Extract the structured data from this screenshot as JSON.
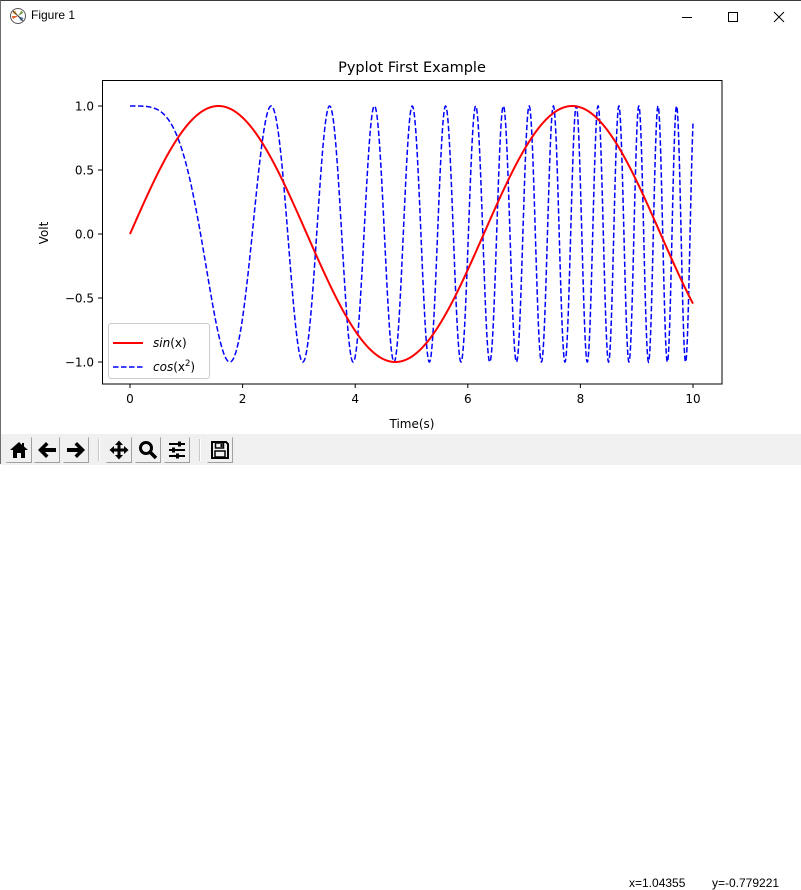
{
  "window": {
    "title": "Figure 1",
    "controls": {
      "minimize": "minimize",
      "maximize": "maximize",
      "close": "close"
    }
  },
  "toolbar": {
    "buttons": [
      {
        "name": "home",
        "icon": "home-icon",
        "tooltip": "Reset original view"
      },
      {
        "name": "back",
        "icon": "arrow-left-icon",
        "tooltip": "Back to previous view"
      },
      {
        "name": "forward",
        "icon": "arrow-right-icon",
        "tooltip": "Forward to next view"
      },
      {
        "name": "pan",
        "icon": "move-icon",
        "tooltip": "Pan axes"
      },
      {
        "name": "zoom",
        "icon": "magnifier-icon",
        "tooltip": "Zoom to rectangle"
      },
      {
        "name": "configure",
        "icon": "sliders-icon",
        "tooltip": "Configure subplots"
      },
      {
        "name": "save",
        "icon": "floppy-disk-icon",
        "tooltip": "Save the figure"
      }
    ],
    "coords": {
      "x": "x=1.04355",
      "y": "y=-0.779221"
    }
  },
  "chart_data": {
    "type": "line",
    "title": "Pyplot First Example",
    "xlabel": "Time(s)",
    "ylabel": "Volt",
    "xlim": [
      -0.5,
      10.5
    ],
    "ylim": [
      -1.1,
      1.2
    ],
    "xticks": [
      0,
      2,
      4,
      6,
      8,
      10
    ],
    "xtick_labels": [
      "0",
      "2",
      "4",
      "6",
      "8",
      "10"
    ],
    "yticks": [
      1.0,
      0.5,
      0.0,
      -0.5,
      -1.0
    ],
    "ytick_labels": [
      "1.0",
      "0.5",
      "0.0",
      "−0.5",
      "−1.0"
    ],
    "grid": false,
    "legend_position": "lower left",
    "x_domain": {
      "start": 0,
      "end": 10,
      "samples": 2000
    },
    "series": [
      {
        "name": "sin(x)",
        "label_main": "sin",
        "label_arg": "(x)",
        "function": "sin(x)",
        "color": "#ff0000",
        "linestyle": "solid",
        "linewidth": 2,
        "x": [
          0,
          1.5708,
          3.1416,
          4.7124,
          6.2832,
          7.854,
          9.4248,
          10
        ],
        "values": [
          0,
          1,
          0,
          -1,
          0,
          1,
          0,
          -0.544
        ]
      },
      {
        "name": "cos(x^2)",
        "label_main": "cos",
        "label_arg_pre": "(x",
        "label_sup": "2",
        "label_arg_post": ")",
        "function": "cos(x*x)",
        "color": "#0000ff",
        "linestyle": "dashed",
        "linewidth": 1.5,
        "x": [
          0,
          1.7725,
          2.5066,
          3.07,
          3.5449,
          10
        ],
        "values": [
          1,
          -1,
          1,
          -1,
          1,
          0.862
        ]
      }
    ]
  }
}
